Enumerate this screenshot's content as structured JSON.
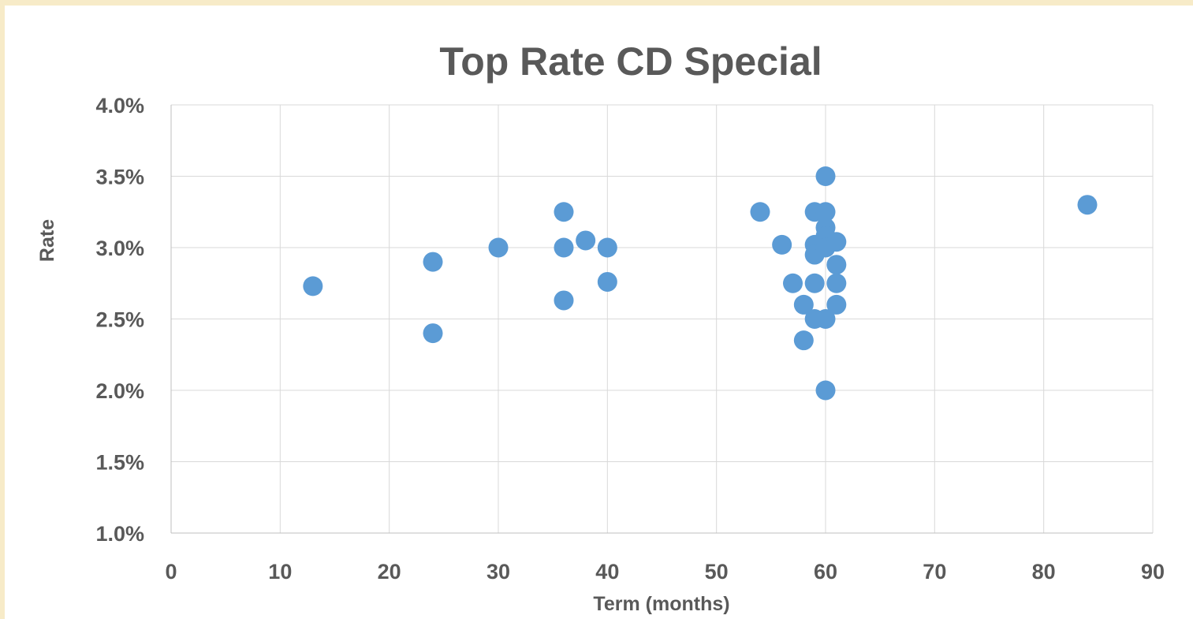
{
  "chart_data": {
    "type": "scatter",
    "title": "Top Rate CD Special",
    "xlabel": "Term (months)",
    "ylabel": "Rate",
    "xlim": [
      0,
      90
    ],
    "ylim": [
      0.01,
      0.04
    ],
    "x_ticks": [
      0,
      10,
      20,
      30,
      40,
      50,
      60,
      70,
      80,
      90
    ],
    "x_tick_labels": [
      "0",
      "10",
      "20",
      "30",
      "40",
      "50",
      "60",
      "70",
      "80",
      "90"
    ],
    "y_ticks": [
      0.01,
      0.015,
      0.02,
      0.025,
      0.03,
      0.035,
      0.04
    ],
    "y_tick_labels": [
      "1.0%",
      "1.5%",
      "2.0%",
      "2.5%",
      "3.0%",
      "3.5%",
      "4.0%"
    ],
    "grid": true,
    "legend": "none",
    "marker_color": "#5b9bd5",
    "series": [
      {
        "points": [
          {
            "x": 13,
            "y": 0.0273
          },
          {
            "x": 24,
            "y": 0.029
          },
          {
            "x": 24,
            "y": 0.024
          },
          {
            "x": 30,
            "y": 0.03
          },
          {
            "x": 36,
            "y": 0.0325
          },
          {
            "x": 36,
            "y": 0.03
          },
          {
            "x": 36,
            "y": 0.0263
          },
          {
            "x": 38,
            "y": 0.0305
          },
          {
            "x": 40,
            "y": 0.03
          },
          {
            "x": 40,
            "y": 0.0276
          },
          {
            "x": 54,
            "y": 0.0325
          },
          {
            "x": 56,
            "y": 0.0302
          },
          {
            "x": 57,
            "y": 0.0275
          },
          {
            "x": 58,
            "y": 0.026
          },
          {
            "x": 58,
            "y": 0.0235
          },
          {
            "x": 59,
            "y": 0.0325
          },
          {
            "x": 59,
            "y": 0.0302
          },
          {
            "x": 59,
            "y": 0.0295
          },
          {
            "x": 59,
            "y": 0.0275
          },
          {
            "x": 59,
            "y": 0.025
          },
          {
            "x": 60,
            "y": 0.035
          },
          {
            "x": 60,
            "y": 0.0325
          },
          {
            "x": 60,
            "y": 0.0314
          },
          {
            "x": 60,
            "y": 0.0308
          },
          {
            "x": 60,
            "y": 0.03
          },
          {
            "x": 60,
            "y": 0.025
          },
          {
            "x": 60,
            "y": 0.02
          },
          {
            "x": 61,
            "y": 0.0304
          },
          {
            "x": 61,
            "y": 0.0288
          },
          {
            "x": 61,
            "y": 0.0275
          },
          {
            "x": 61,
            "y": 0.026
          },
          {
            "x": 84,
            "y": 0.033
          }
        ]
      }
    ]
  }
}
